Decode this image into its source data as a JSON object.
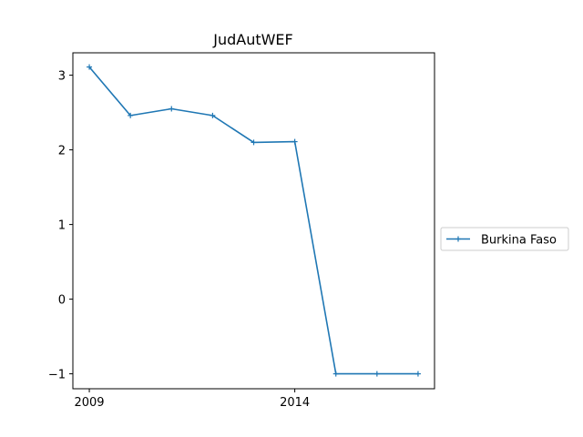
{
  "chart_data": {
    "type": "line",
    "title": "JudAutWEF",
    "xlabel": "",
    "ylabel": "",
    "x": [
      2009,
      2010,
      2011,
      2012,
      2013,
      2014,
      2015,
      2016,
      2017
    ],
    "xlim": [
      2008.6,
      2017.4
    ],
    "ylim": [
      -1.2,
      3.3
    ],
    "x_ticks": [
      2009,
      2014
    ],
    "x_tick_labels": [
      "2009",
      "2014"
    ],
    "y_ticks": [
      -1,
      0,
      1,
      2,
      3
    ],
    "y_tick_labels": [
      "−1",
      "0",
      "1",
      "2",
      "3"
    ],
    "grid": false,
    "legend_position": "outside-right",
    "series": [
      {
        "name": "Burkina Faso",
        "color": "#1f77b4",
        "marker": "plus",
        "values": [
          3.11,
          2.46,
          2.55,
          2.46,
          2.1,
          2.11,
          -1.0,
          -1.0,
          -1.0
        ]
      }
    ]
  }
}
